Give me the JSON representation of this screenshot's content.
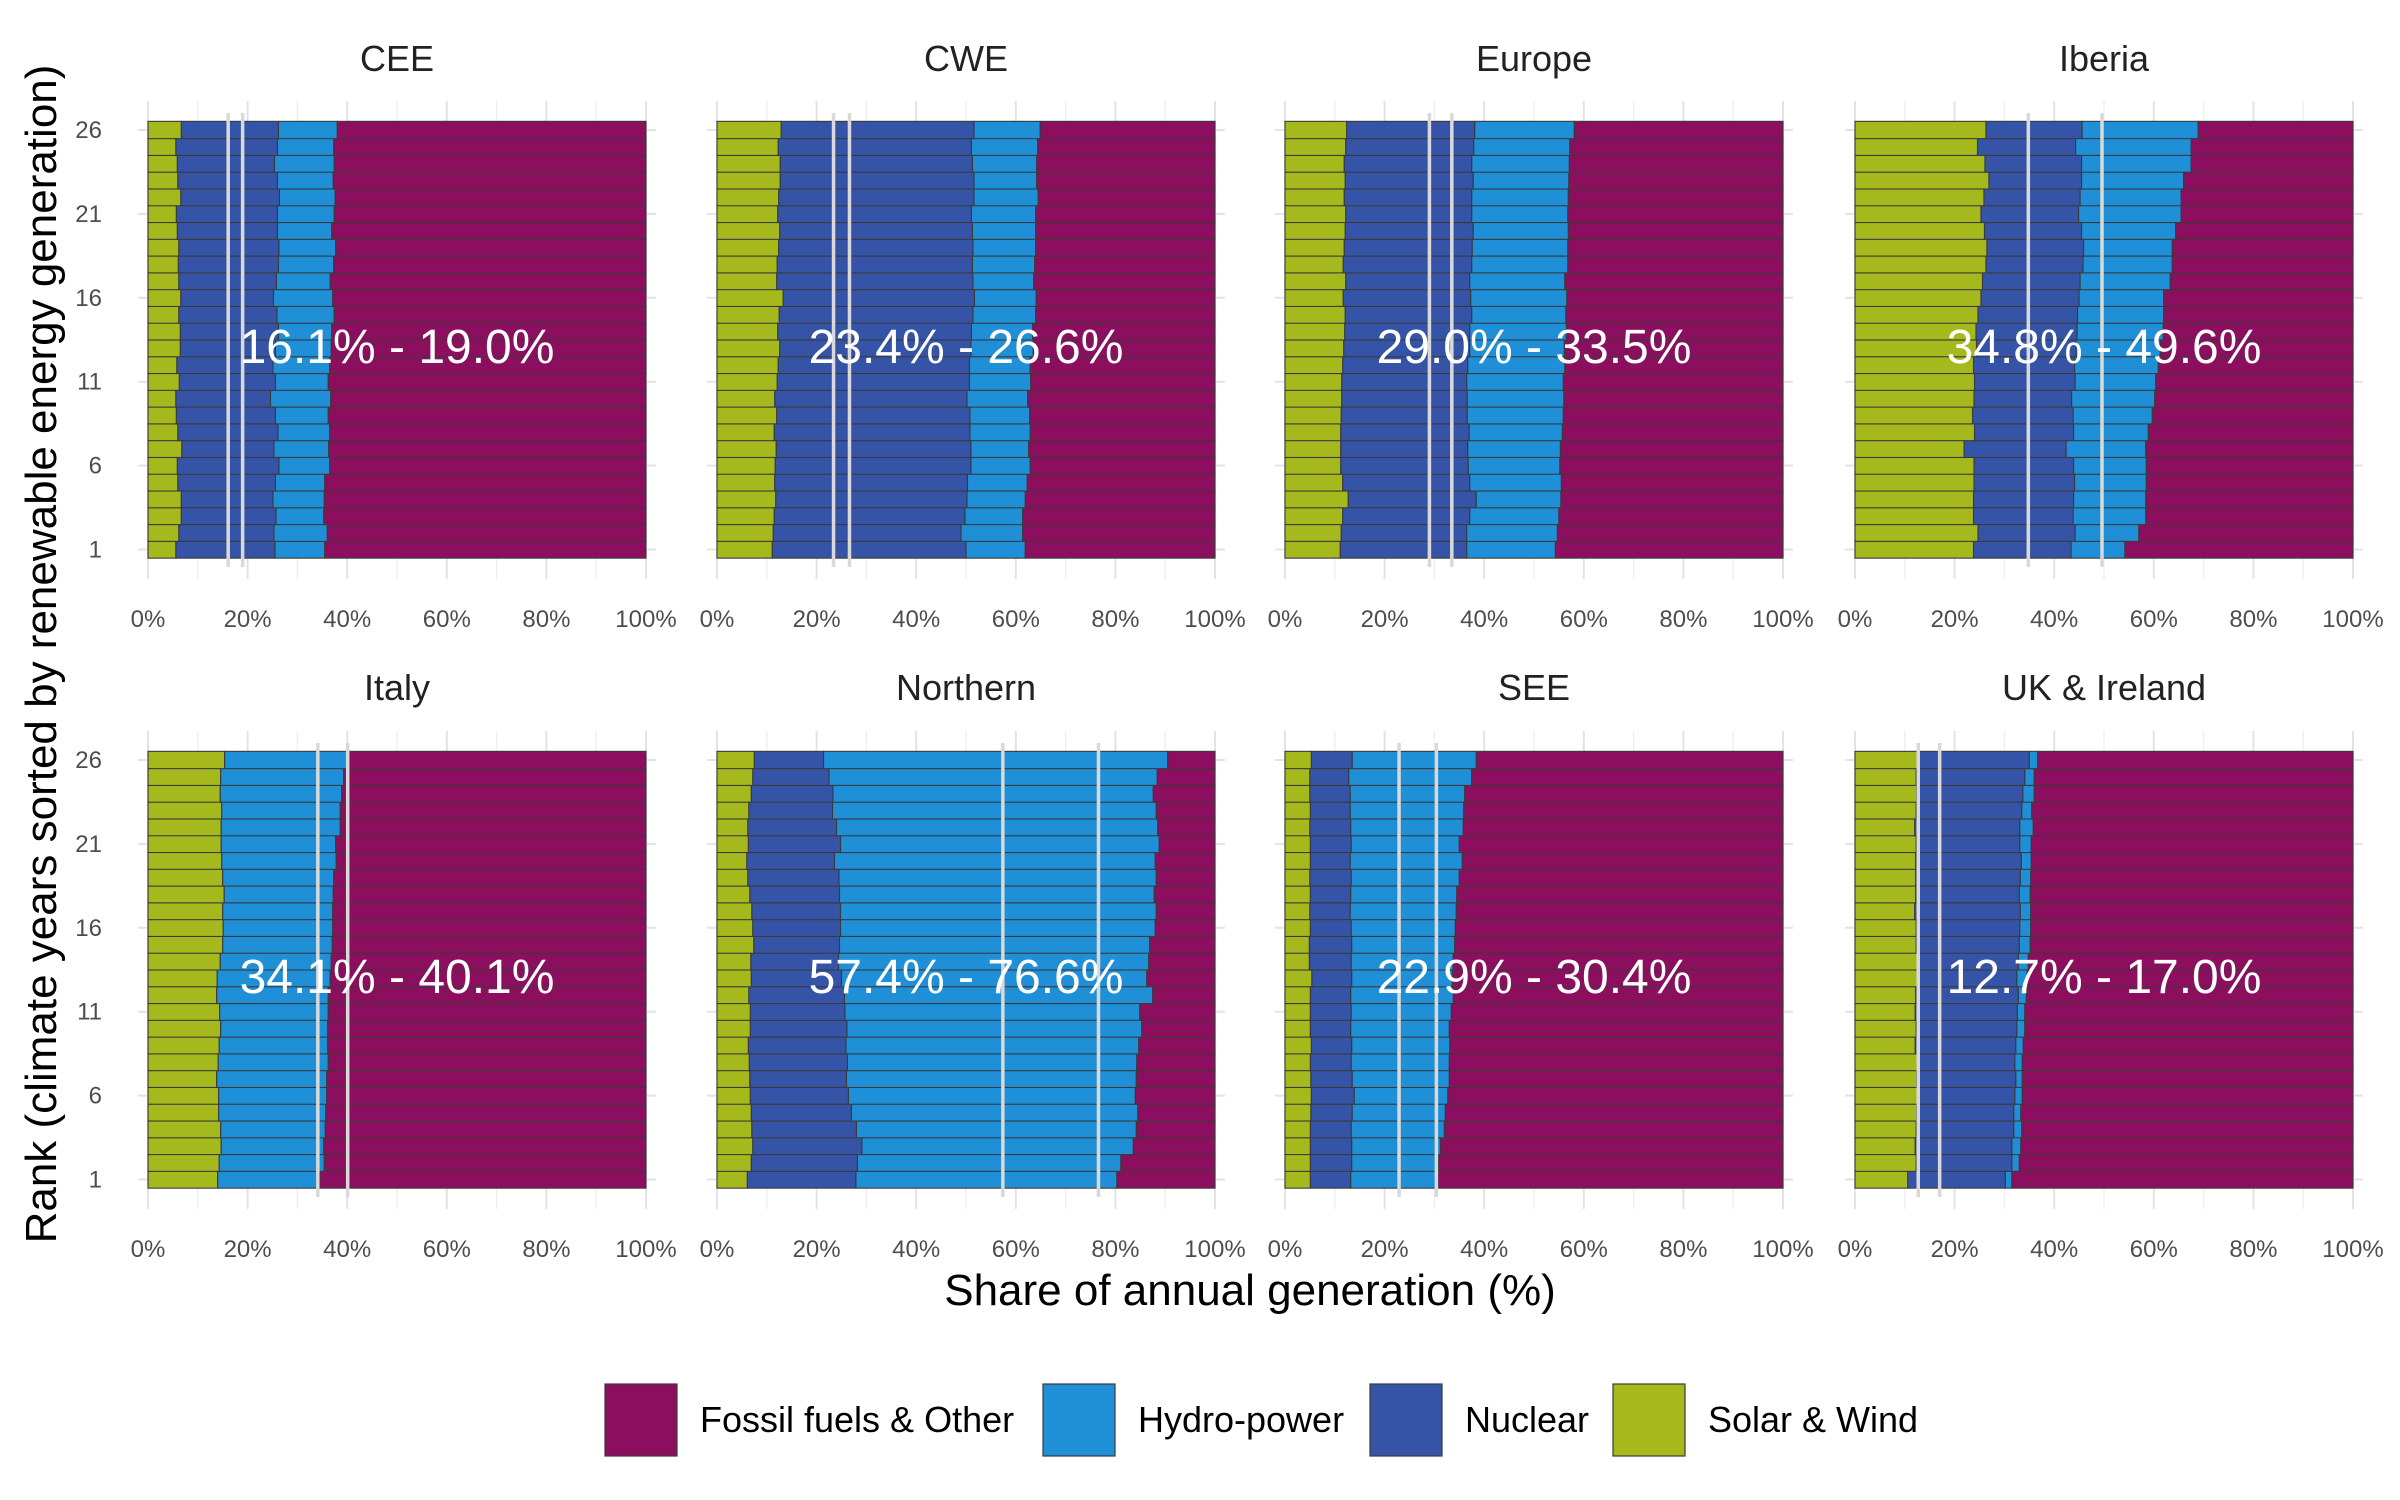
{
  "chart_data": {
    "type": "bar",
    "orientation": "horizontal",
    "stacked": true,
    "facet_layout": "4 columns x 2 rows",
    "xlabel": "Share of annual generation (%)",
    "ylabel": "Rank (climate years sorted by renewable energy generation)",
    "xlim": [
      0,
      100
    ],
    "xticks": [
      "0%",
      "20%",
      "40%",
      "60%",
      "80%",
      "100%"
    ],
    "ylim": [
      1,
      26
    ],
    "yticks": [
      "1",
      "6",
      "11",
      "16",
      "21",
      "26"
    ],
    "grid": true,
    "legend_position": "bottom",
    "colors": {
      "Fossil fuels & Other": "#8b0f5e",
      "Hydro-power": "#1f8fd8",
      "Nuclear": "#3554a8",
      "Solar & Wind": "#a5b81c"
    },
    "legend": [
      "Fossil fuels & Other",
      "Hydro-power",
      "Nuclear",
      "Solar & Wind"
    ],
    "panels": [
      {
        "title": "CEE",
        "range_label": "16.1% - 19.0%",
        "reference_lines": [
          16.1,
          19.0
        ],
        "solar_wind": [
          5.6,
          6.2,
          6.7,
          6.7,
          6.0,
          5.9,
          6.8,
          6.0,
          5.7,
          5.6,
          6.3,
          5.8,
          6.5,
          6.5,
          6.2,
          6.6,
          6.2,
          6.1,
          6.2,
          5.9,
          5.7,
          6.6,
          6.0,
          5.9,
          5.6,
          6.7
        ],
        "nuclear": [
          25.5,
          25.3,
          25.7,
          25.1,
          25.6,
          26.3,
          25.3,
          26.1,
          25.6,
          24.6,
          25.6,
          25.1,
          25.6,
          26.2,
          25.9,
          25.2,
          25.8,
          26.2,
          26.3,
          26.0,
          26.0,
          26.4,
          26.0,
          25.4,
          26.0,
          26.2
        ],
        "hydro": [
          35.5,
          36.0,
          35.3,
          35.4,
          35.5,
          36.5,
          36.3,
          36.5,
          36.2,
          36.7,
          36.2,
          36.5,
          36.8,
          36.9,
          37.4,
          37.1,
          36.6,
          37.3,
          37.7,
          36.9,
          37.4,
          37.6,
          37.2,
          37.4,
          37.3,
          38.0
        ]
      },
      {
        "title": "CWE",
        "range_label": "23.4% - 26.6%",
        "reference_lines": [
          23.4,
          26.6
        ],
        "solar_wind": [
          11.1,
          11.3,
          11.5,
          11.8,
          11.6,
          11.7,
          11.9,
          11.5,
          12.0,
          11.6,
          12.1,
          12.3,
          12.6,
          12.2,
          12.5,
          13.3,
          12.0,
          12.1,
          12.4,
          12.6,
          12.2,
          12.4,
          12.7,
          12.7,
          12.3,
          12.9
        ],
        "nuclear": [
          50.0,
          49.0,
          49.8,
          50.2,
          50.3,
          51.0,
          51.0,
          50.8,
          50.8,
          50.2,
          50.7,
          50.7,
          51.0,
          51.1,
          51.4,
          51.7,
          51.4,
          51.3,
          51.4,
          51.3,
          51.1,
          51.6,
          51.6,
          51.3,
          51.1,
          51.6
        ],
        "hydro": [
          61.9,
          61.4,
          61.4,
          61.9,
          62.3,
          62.9,
          62.6,
          62.9,
          62.8,
          62.4,
          63.0,
          62.9,
          63.5,
          63.4,
          64.0,
          64.1,
          63.6,
          63.8,
          64.0,
          64.0,
          64.0,
          64.5,
          64.2,
          64.2,
          64.4,
          64.9
        ]
      },
      {
        "title": "Europe",
        "range_label": "29.0% - 33.5%",
        "reference_lines": [
          29.0,
          33.5
        ],
        "solar_wind": [
          11.1,
          11.3,
          11.6,
          12.7,
          11.6,
          11.2,
          11.2,
          11.2,
          11.3,
          11.4,
          11.4,
          11.6,
          11.8,
          12.0,
          12.1,
          11.7,
          12.2,
          11.7,
          11.9,
          12.1,
          12.2,
          11.9,
          12.1,
          11.9,
          12.2,
          12.4
        ],
        "nuclear": [
          36.5,
          36.5,
          37.1,
          38.4,
          37.1,
          36.8,
          36.7,
          37.0,
          36.6,
          36.6,
          36.5,
          36.7,
          37.1,
          37.1,
          37.5,
          37.3,
          37.1,
          37.5,
          37.6,
          37.8,
          37.5,
          37.5,
          37.8,
          37.5,
          37.9,
          38.1
        ],
        "hydro": [
          54.3,
          54.7,
          55.0,
          55.4,
          55.5,
          55.2,
          55.3,
          55.7,
          55.9,
          56.0,
          55.9,
          56.2,
          56.1,
          56.5,
          56.4,
          56.6,
          56.2,
          56.8,
          56.8,
          56.9,
          56.8,
          56.9,
          57.0,
          57.1,
          57.2,
          58.1
        ]
      },
      {
        "title": "Iberia",
        "range_label": "34.8% - 49.6%",
        "reference_lines": [
          34.8,
          49.6
        ],
        "solar_wind": [
          23.8,
          24.7,
          23.8,
          23.8,
          23.9,
          23.9,
          21.9,
          24.0,
          23.6,
          23.9,
          24.0,
          23.8,
          24.4,
          24.3,
          24.7,
          25.3,
          25.6,
          26.3,
          26.5,
          26.0,
          25.3,
          25.9,
          26.9,
          26.1,
          24.6,
          26.3
        ],
        "nuclear": [
          43.4,
          44.2,
          43.8,
          43.9,
          44.1,
          43.9,
          42.4,
          43.9,
          43.8,
          43.5,
          44.2,
          44.1,
          44.4,
          44.6,
          44.7,
          45.0,
          45.2,
          45.8,
          45.9,
          45.5,
          44.9,
          45.2,
          45.5,
          45.5,
          44.3,
          45.6
        ],
        "hydro": [
          54.2,
          57.0,
          58.4,
          58.4,
          58.5,
          58.5,
          58.4,
          58.9,
          59.7,
          60.2,
          60.4,
          60.9,
          61.3,
          61.9,
          62.0,
          62.0,
          63.3,
          63.7,
          63.7,
          64.4,
          65.5,
          65.5,
          66.0,
          67.5,
          67.5,
          68.9
        ]
      },
      {
        "title": "Italy",
        "range_label": "34.1% - 40.1%",
        "reference_lines": [
          34.1,
          40.1
        ],
        "solar_wind": [
          14.0,
          14.3,
          14.7,
          14.6,
          14.2,
          14.2,
          13.8,
          14.1,
          14.3,
          14.6,
          14.4,
          13.8,
          13.9,
          14.5,
          15.0,
          15.1,
          15.0,
          15.3,
          15.0,
          14.8,
          14.7,
          14.7,
          14.8,
          14.5,
          14.6,
          15.4
        ],
        "nuclear": [
          14.0,
          14.3,
          14.7,
          14.6,
          14.2,
          14.2,
          13.8,
          14.1,
          14.3,
          14.6,
          14.4,
          13.8,
          13.9,
          14.5,
          15.0,
          15.1,
          15.0,
          15.3,
          15.0,
          14.8,
          14.7,
          14.7,
          14.8,
          14.5,
          14.6,
          15.4
        ],
        "hydro": [
          34.5,
          35.4,
          35.3,
          35.6,
          35.7,
          35.9,
          35.9,
          36.2,
          36.1,
          36.1,
          36.2,
          36.2,
          36.6,
          36.8,
          37.0,
          37.1,
          37.1,
          37.2,
          37.3,
          37.8,
          37.7,
          38.6,
          38.6,
          38.9,
          39.3,
          40.2
        ]
      },
      {
        "title": "Northern",
        "range_label": "57.4% - 76.6%",
        "reference_lines": [
          57.4,
          76.6
        ],
        "solar_wind": [
          6.1,
          6.9,
          7.2,
          7.0,
          6.9,
          6.7,
          6.6,
          6.5,
          6.3,
          6.7,
          6.7,
          6.4,
          6.9,
          6.8,
          7.4,
          7.2,
          7.0,
          6.6,
          6.2,
          6.0,
          6.3,
          6.2,
          6.4,
          6.9,
          7.2,
          7.5
        ],
        "nuclear": [
          27.9,
          28.2,
          29.1,
          28.0,
          27.0,
          26.4,
          26.0,
          26.2,
          25.9,
          26.1,
          25.7,
          25.6,
          25.0,
          24.4,
          24.6,
          24.8,
          24.8,
          24.6,
          24.5,
          23.6,
          24.8,
          24.0,
          23.2,
          23.3,
          22.5,
          21.4
        ],
        "hydro": [
          80.3,
          81.1,
          83.6,
          84.2,
          84.5,
          84.0,
          84.2,
          84.3,
          84.7,
          85.3,
          84.9,
          87.5,
          86.3,
          86.7,
          86.9,
          88.0,
          88.2,
          87.8,
          88.2,
          88.0,
          88.8,
          88.5,
          88.2,
          87.6,
          88.4,
          90.5
        ]
      },
      {
        "title": "SEE",
        "range_label": "22.9% - 30.4%",
        "reference_lines": [
          22.9,
          30.4
        ],
        "solar_wind": [
          5.1,
          5.1,
          5.1,
          5.1,
          5.2,
          5.3,
          5.2,
          5.1,
          5.3,
          5.1,
          5.1,
          5.1,
          5.4,
          4.9,
          4.9,
          5.1,
          5.0,
          5.1,
          5.0,
          5.1,
          5.1,
          5.0,
          5.1,
          5.0,
          5.0,
          5.3
        ],
        "nuclear": [
          13.2,
          13.4,
          13.4,
          13.3,
          13.5,
          13.9,
          13.5,
          13.3,
          13.4,
          13.2,
          13.3,
          13.2,
          13.4,
          13.3,
          13.4,
          13.3,
          13.1,
          13.2,
          13.3,
          13.1,
          13.3,
          13.2,
          13.1,
          13.1,
          12.8,
          13.5
        ],
        "hydro": [
          30.7,
          30.8,
          31.2,
          32.0,
          32.2,
          32.7,
          33.0,
          33.0,
          33.1,
          33.0,
          33.4,
          33.8,
          33.6,
          33.8,
          34.1,
          34.2,
          34.4,
          34.5,
          35.0,
          35.6,
          35.0,
          35.8,
          35.9,
          36.1,
          37.5,
          38.4
        ]
      },
      {
        "title": "UK & Ireland",
        "range_label": "12.7% - 17.0%",
        "reference_lines": [
          12.7,
          17.0
        ],
        "solar_wind": [
          10.6,
          12.3,
          12.1,
          12.3,
          12.4,
          12.5,
          12.4,
          12.5,
          12.1,
          12.3,
          12.1,
          12.2,
          12.5,
          12.6,
          12.3,
          12.3,
          12.0,
          12.2,
          12.2,
          12.2,
          12.3,
          12.0,
          12.3,
          12.4,
          12.3,
          12.9
        ],
        "nuclear": [
          30.2,
          31.5,
          31.5,
          31.9,
          31.9,
          32.1,
          32.3,
          32.1,
          32.3,
          32.5,
          32.6,
          32.8,
          32.5,
          32.8,
          33.0,
          33.1,
          33.2,
          33.0,
          33.2,
          33.4,
          33.1,
          33.1,
          33.5,
          33.7,
          34.1,
          35.0
        ],
        "hydro": [
          31.5,
          33.0,
          33.3,
          33.5,
          33.3,
          33.6,
          33.6,
          33.6,
          33.8,
          34.1,
          34.1,
          34.4,
          34.6,
          34.8,
          35.2,
          35.3,
          35.3,
          35.2,
          35.3,
          35.4,
          35.4,
          35.8,
          35.5,
          36.0,
          36.0,
          36.7
        ]
      }
    ]
  }
}
